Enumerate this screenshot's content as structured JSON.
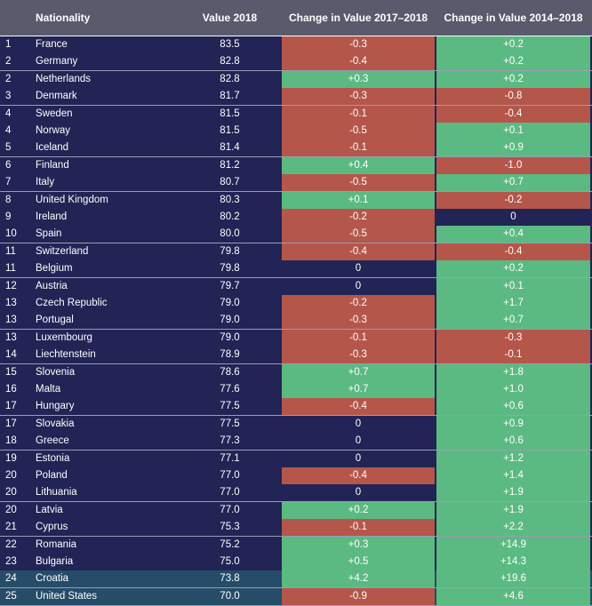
{
  "chart_data": {
    "type": "table",
    "colors": {
      "header": "#5a5a6c",
      "row": "#212455",
      "row_highlight": "#254c68",
      "positive": "#5bba82",
      "negative": "#b5564a",
      "zero": "#212455",
      "text": "#ffffff"
    },
    "columns": {
      "nationality": "Nationality",
      "value": "Value 2018",
      "change_1": "Change in Value 2017–2018",
      "change_2": "Change in Value 2014–2018"
    },
    "rows": [
      {
        "rank": "1",
        "nationality": "France",
        "value": "83.5",
        "change_1": "-0.3",
        "change_2": "+0.2"
      },
      {
        "rank": "2",
        "nationality": "Germany",
        "value": "82.8",
        "change_1": "-0.4",
        "change_2": "+0.2"
      },
      {
        "rank": "2",
        "nationality": "Netherlands",
        "value": "82.8",
        "change_1": "+0.3",
        "change_2": "+0.2"
      },
      {
        "rank": "3",
        "nationality": "Denmark",
        "value": "81.7",
        "change_1": "-0.3",
        "change_2": "-0.8"
      },
      {
        "rank": "4",
        "nationality": "Sweden",
        "value": "81.5",
        "change_1": "-0.1",
        "change_2": "-0.4"
      },
      {
        "rank": "4",
        "nationality": "Norway",
        "value": "81.5",
        "change_1": "-0.5",
        "change_2": "+0.1"
      },
      {
        "rank": "5",
        "nationality": "Iceland",
        "value": "81.4",
        "change_1": "-0.1",
        "change_2": "+0.9"
      },
      {
        "rank": "6",
        "nationality": "Finland",
        "value": "81.2",
        "change_1": "+0.4",
        "change_2": "-1.0"
      },
      {
        "rank": "7",
        "nationality": "Italy",
        "value": "80.7",
        "change_1": "-0.5",
        "change_2": "+0.7"
      },
      {
        "rank": "8",
        "nationality": "United Kingdom",
        "value": "80.3",
        "change_1": "+0.1",
        "change_2": "-0.2"
      },
      {
        "rank": "9",
        "nationality": "Ireland",
        "value": "80.2",
        "change_1": "-0.2",
        "change_2": "0"
      },
      {
        "rank": "10",
        "nationality": "Spain",
        "value": "80.0",
        "change_1": "-0.5",
        "change_2": "+0.4"
      },
      {
        "rank": "11",
        "nationality": "Switzerland",
        "value": "79.8",
        "change_1": "-0.4",
        "change_2": "-0.4"
      },
      {
        "rank": "11",
        "nationality": "Belgium",
        "value": "79.8",
        "change_1": "0",
        "change_2": "+0.2"
      },
      {
        "rank": "12",
        "nationality": "Austria",
        "value": "79.7",
        "change_1": "0",
        "change_2": "+0.1"
      },
      {
        "rank": "13",
        "nationality": "Czech Republic",
        "value": "79.0",
        "change_1": "-0.2",
        "change_2": "+1.7"
      },
      {
        "rank": "13",
        "nationality": "Portugal",
        "value": "79.0",
        "change_1": "-0.3",
        "change_2": "+0.7"
      },
      {
        "rank": "13",
        "nationality": "Luxembourg",
        "value": "79.0",
        "change_1": "-0.1",
        "change_2": "-0.3"
      },
      {
        "rank": "14",
        "nationality": "Liechtenstein",
        "value": "78.9",
        "change_1": "-0.3",
        "change_2": "-0.1"
      },
      {
        "rank": "15",
        "nationality": "Slovenia",
        "value": "78.6",
        "change_1": "+0.7",
        "change_2": "+1.8"
      },
      {
        "rank": "16",
        "nationality": "Malta",
        "value": "77.6",
        "change_1": "+0.7",
        "change_2": "+1.0"
      },
      {
        "rank": "17",
        "nationality": "Hungary",
        "value": "77.5",
        "change_1": "-0.4",
        "change_2": "+0.6"
      },
      {
        "rank": "17",
        "nationality": "Slovakia",
        "value": "77.5",
        "change_1": "0",
        "change_2": "+0.9"
      },
      {
        "rank": "18",
        "nationality": "Greece",
        "value": "77.3",
        "change_1": "0",
        "change_2": "+0.6"
      },
      {
        "rank": "19",
        "nationality": "Estonia",
        "value": "77.1",
        "change_1": "0",
        "change_2": "+1.2"
      },
      {
        "rank": "20",
        "nationality": "Poland",
        "value": "77.0",
        "change_1": "-0.4",
        "change_2": "+1.4"
      },
      {
        "rank": "20",
        "nationality": "Lithuania",
        "value": "77.0",
        "change_1": "0",
        "change_2": "+1.9"
      },
      {
        "rank": "20",
        "nationality": "Latvia",
        "value": "77.0",
        "change_1": "+0.2",
        "change_2": "+1.9"
      },
      {
        "rank": "21",
        "nationality": "Cyprus",
        "value": "75.3",
        "change_1": "-0.1",
        "change_2": "+2.2"
      },
      {
        "rank": "22",
        "nationality": "Romania",
        "value": "75.2",
        "change_1": "+0.3",
        "change_2": "+14.9"
      },
      {
        "rank": "23",
        "nationality": "Bulgaria",
        "value": "75.0",
        "change_1": "+0.5",
        "change_2": "+14.3"
      },
      {
        "rank": "24",
        "nationality": "Croatia",
        "value": "73.8",
        "change_1": "+4.2",
        "change_2": "+19.6",
        "highlight": true
      },
      {
        "rank": "25",
        "nationality": "United States",
        "value": "70.0",
        "change_1": "-0.9",
        "change_2": "+4.6",
        "highlight": true
      }
    ]
  }
}
